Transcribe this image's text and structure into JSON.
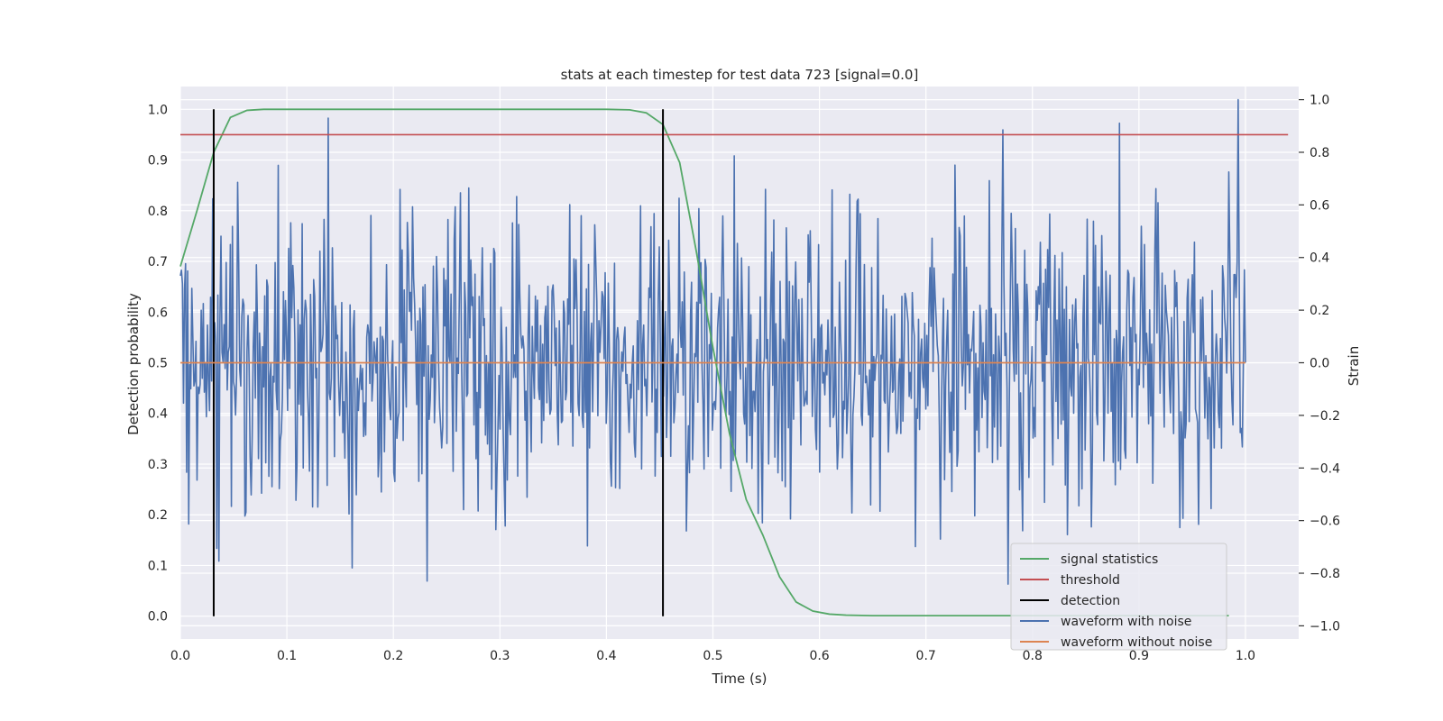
{
  "chart_data": {
    "type": "line",
    "title": "stats at each timestep for test data 723 [signal=0.0]",
    "xlabel": "Time (s)",
    "ylabel_left": "Detection probability",
    "ylabel_right": "Strain",
    "xlim": [
      0.0,
      1.05
    ],
    "ylim_left": [
      -0.045,
      1.045
    ],
    "ylim_right": [
      -1.05,
      1.05
    ],
    "x_ticks": [
      "0.0",
      "0.1",
      "0.2",
      "0.3",
      "0.4",
      "0.5",
      "0.6",
      "0.7",
      "0.8",
      "0.9",
      "1.0"
    ],
    "y_left_ticks": [
      "0.0",
      "0.1",
      "0.2",
      "0.3",
      "0.4",
      "0.5",
      "0.6",
      "0.7",
      "0.8",
      "0.9",
      "1.0"
    ],
    "y_right_ticks": [
      "−1.0",
      "−0.8",
      "−0.6",
      "−0.4",
      "−0.2",
      "0.0",
      "0.2",
      "0.4",
      "0.6",
      "0.8",
      "1.0"
    ],
    "grid": true,
    "legend_position": "bottom-right",
    "series": [
      {
        "name": "signal statistics",
        "axis": "left",
        "color": "#55a868",
        "x": [
          0.0,
          0.0156,
          0.0313,
          0.0469,
          0.0625,
          0.0781,
          0.1,
          0.2,
          0.3,
          0.4,
          0.4219,
          0.4375,
          0.4531,
          0.4688,
          0.4844,
          0.5,
          0.5156,
          0.5313,
          0.5469,
          0.5625,
          0.5781,
          0.5938,
          0.6094,
          0.625,
          0.65,
          0.7,
          0.8,
          0.9,
          0.9844
        ],
        "y": [
          0.69,
          0.8,
          0.915,
          0.984,
          0.998,
          1.0,
          1.0,
          1.0,
          1.0,
          1.0,
          0.999,
          0.993,
          0.97,
          0.895,
          0.72,
          0.53,
          0.36,
          0.23,
          0.16,
          0.078,
          0.028,
          0.01,
          0.004,
          0.002,
          0.001,
          0.001,
          0.001,
          0.001,
          0.001
        ]
      },
      {
        "name": "threshold",
        "axis": "left",
        "color": "#c44e52",
        "x": [
          0.0,
          1.04
        ],
        "y": [
          0.95,
          0.95
        ]
      },
      {
        "name": "detection",
        "axis": "left",
        "color": "#000000",
        "x_positions": [
          0.0313,
          0.4531
        ],
        "y_range": [
          0.0,
          1.0
        ]
      },
      {
        "name": "waveform with noise",
        "axis": "right",
        "color": "#4c72b0",
        "x_range": [
          0.0,
          1.0
        ],
        "n_points": 1024,
        "approx_std": 0.3,
        "max": 1.0,
        "min": -0.94
      },
      {
        "name": "waveform without noise",
        "axis": "right",
        "color": "#dd8452",
        "x": [
          0.0,
          1.0
        ],
        "y": [
          0.0,
          0.0
        ]
      }
    ]
  }
}
